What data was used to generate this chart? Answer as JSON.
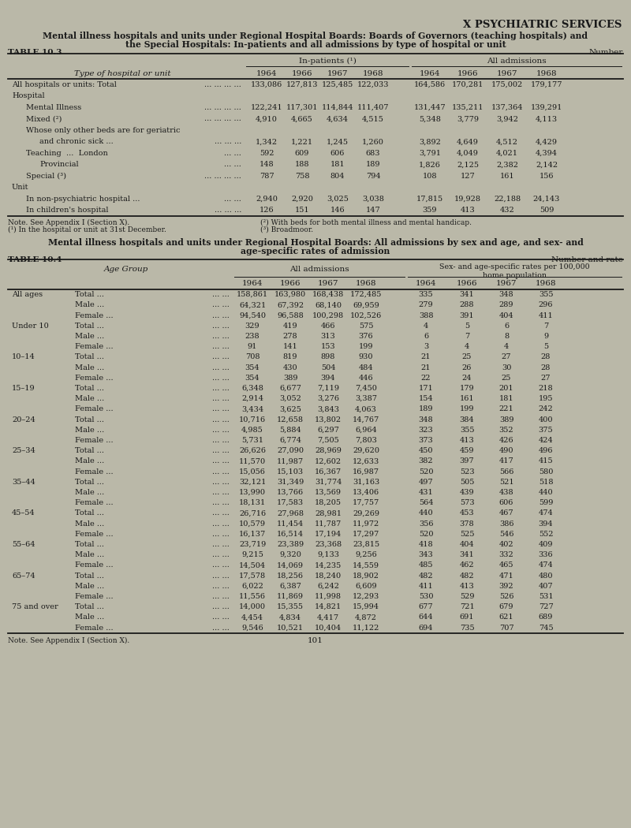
{
  "bg_color": "#bab8a8",
  "text_color": "#1a1a1a",
  "page_title": "X PSYCHIATRIC SERVICES",
  "table1_title1": "Mental illness hospitals and units under Regional Hospital Boards: Boards of Governors (teaching hospitals) and",
  "table1_title2": "the Special Hospitals: In-patients and all admissions by type of hospital or unit",
  "table1_label": "TABLE 10.3",
  "table1_number": "Number",
  "table1_rows": [
    {
      "label": "All hospitals or units: Total",
      "label2": "... ... ... ...",
      "indent": 0,
      "bold_label": false,
      "ip": [
        133086,
        127813,
        125485,
        122033
      ],
      "adm": [
        164586,
        170281,
        175002,
        179177
      ]
    },
    {
      "label": "Hospital",
      "label2": "",
      "indent": 0,
      "bold_label": false,
      "ip": null,
      "adm": null
    },
    {
      "label": "Mental Illness",
      "label2": "... ... ... ...",
      "indent": 1,
      "bold_label": false,
      "ip": [
        122241,
        117301,
        114844,
        111407
      ],
      "adm": [
        131447,
        135211,
        137364,
        139291
      ]
    },
    {
      "label": "Mixed (²)",
      "label2": "... ... ... ...",
      "indent": 1,
      "bold_label": false,
      "ip": [
        4910,
        4665,
        4634,
        4515
      ],
      "adm": [
        5348,
        3779,
        3942,
        4113
      ]
    },
    {
      "label": "Whose only other beds are for geriatric",
      "label2": "",
      "indent": 1,
      "bold_label": false,
      "ip": null,
      "adm": null
    },
    {
      "label": "and chronic sick ...",
      "label2": "... ... ...",
      "indent": 2,
      "bold_label": false,
      "ip": [
        1342,
        1221,
        1245,
        1260
      ],
      "adm": [
        3892,
        4649,
        4512,
        4429
      ]
    },
    {
      "label": "Teaching  ...  London",
      "label2": "... ...",
      "indent": 1,
      "bold_label": false,
      "ip": [
        592,
        609,
        606,
        683
      ],
      "adm": [
        3791,
        4049,
        4021,
        4394
      ]
    },
    {
      "label": "Provincial",
      "label2": "... ...",
      "indent": 2,
      "bold_label": false,
      "ip": [
        148,
        188,
        181,
        189
      ],
      "adm": [
        1826,
        2125,
        2382,
        2142
      ]
    },
    {
      "label": "Special (³)",
      "label2": "... ... ... ...",
      "indent": 1,
      "bold_label": false,
      "ip": [
        787,
        758,
        804,
        794
      ],
      "adm": [
        108,
        127,
        161,
        156
      ]
    },
    {
      "label": "Unit",
      "label2": "",
      "indent": 0,
      "bold_label": false,
      "ip": null,
      "adm": null
    },
    {
      "label": "In non-psychiatric hospital ...",
      "label2": "... ...",
      "indent": 1,
      "bold_label": false,
      "ip": [
        2940,
        2920,
        3025,
        3038
      ],
      "adm": [
        17815,
        19928,
        22188,
        24143
      ]
    },
    {
      "label": "In children's hospital",
      "label2": "... ... ...",
      "indent": 1,
      "bold_label": false,
      "ip": [
        126,
        151,
        146,
        147
      ],
      "adm": [
        359,
        413,
        432,
        509
      ]
    }
  ],
  "table1_notes_left": [
    "Note. See Appendix I (Section X).",
    "(¹) In the hospital or unit at 31st December."
  ],
  "table1_notes_right": [
    "(²) With beds for both mental illness and mental handicap.",
    "(³) Broadmoor."
  ],
  "table2_title1": "Mental illness hospitals and units under Regional Hospital Boards: All admissions by sex and age, and sex- and",
  "table2_title2": "age-specific rates of admission",
  "table2_label": "TABLE 10.4",
  "table2_number": "Number and rate",
  "table2_rows": [
    {
      "age": "All ages",
      "sub": "Total",
      "adm": [
        158861,
        163980,
        168438,
        172485
      ],
      "rates": [
        335,
        341,
        348,
        355
      ]
    },
    {
      "age": "",
      "sub": "Male",
      "adm": [
        64321,
        67392,
        68140,
        69959
      ],
      "rates": [
        279,
        288,
        289,
        296
      ]
    },
    {
      "age": "",
      "sub": "Female",
      "adm": [
        94540,
        96588,
        100298,
        102526
      ],
      "rates": [
        388,
        391,
        404,
        411
      ]
    },
    {
      "age": "Under 10",
      "sub": "Total",
      "adm": [
        329,
        419,
        466,
        575
      ],
      "rates": [
        4,
        5,
        6,
        7
      ]
    },
    {
      "age": "",
      "sub": "Male",
      "adm": [
        238,
        278,
        313,
        376
      ],
      "rates": [
        6,
        7,
        8,
        9
      ]
    },
    {
      "age": "",
      "sub": "Female",
      "adm": [
        91,
        141,
        153,
        199
      ],
      "rates": [
        3,
        4,
        4,
        5
      ]
    },
    {
      "age": "10–14",
      "sub": "Total",
      "adm": [
        708,
        819,
        898,
        930
      ],
      "rates": [
        21,
        25,
        27,
        28
      ]
    },
    {
      "age": "",
      "sub": "Male",
      "adm": [
        354,
        430,
        504,
        484
      ],
      "rates": [
        21,
        26,
        30,
        28
      ]
    },
    {
      "age": "",
      "sub": "Female",
      "adm": [
        354,
        389,
        394,
        446
      ],
      "rates": [
        22,
        24,
        25,
        27
      ]
    },
    {
      "age": "15–19",
      "sub": "Total",
      "adm": [
        6348,
        6677,
        7119,
        7450
      ],
      "rates": [
        171,
        179,
        201,
        218
      ]
    },
    {
      "age": "",
      "sub": "Male",
      "adm": [
        2914,
        3052,
        3276,
        3387
      ],
      "rates": [
        154,
        161,
        181,
        195
      ]
    },
    {
      "age": "",
      "sub": "Female",
      "adm": [
        3434,
        3625,
        3843,
        4063
      ],
      "rates": [
        189,
        199,
        221,
        242
      ]
    },
    {
      "age": "20–24",
      "sub": "Total",
      "adm": [
        10716,
        12658,
        13802,
        14767
      ],
      "rates": [
        348,
        384,
        389,
        400
      ]
    },
    {
      "age": "",
      "sub": "Male",
      "adm": [
        4985,
        5884,
        6297,
        6964
      ],
      "rates": [
        323,
        355,
        352,
        375
      ]
    },
    {
      "age": "",
      "sub": "Female",
      "adm": [
        5731,
        6774,
        7505,
        7803
      ],
      "rates": [
        373,
        413,
        426,
        424
      ]
    },
    {
      "age": "25–34",
      "sub": "Total",
      "adm": [
        26626,
        27090,
        28969,
        29620
      ],
      "rates": [
        450,
        459,
        490,
        496
      ]
    },
    {
      "age": "",
      "sub": "Male",
      "adm": [
        11570,
        11987,
        12602,
        12633
      ],
      "rates": [
        382,
        397,
        417,
        415
      ]
    },
    {
      "age": "",
      "sub": "Female",
      "adm": [
        15056,
        15103,
        16367,
        16987
      ],
      "rates": [
        520,
        523,
        566,
        580
      ]
    },
    {
      "age": "35–44",
      "sub": "Total",
      "adm": [
        32121,
        31349,
        31774,
        31163
      ],
      "rates": [
        497,
        505,
        521,
        518
      ]
    },
    {
      "age": "",
      "sub": "Male",
      "adm": [
        13990,
        13766,
        13569,
        13406
      ],
      "rates": [
        431,
        439,
        438,
        440
      ]
    },
    {
      "age": "",
      "sub": "Female",
      "adm": [
        18131,
        17583,
        18205,
        17757
      ],
      "rates": [
        564,
        573,
        606,
        599
      ]
    },
    {
      "age": "45–54",
      "sub": "Total",
      "adm": [
        26716,
        27968,
        28981,
        29269
      ],
      "rates": [
        440,
        453,
        467,
        474
      ]
    },
    {
      "age": "",
      "sub": "Male",
      "adm": [
        10579,
        11454,
        11787,
        11972
      ],
      "rates": [
        356,
        378,
        386,
        394
      ]
    },
    {
      "age": "",
      "sub": "Female",
      "adm": [
        16137,
        16514,
        17194,
        17297
      ],
      "rates": [
        520,
        525,
        546,
        552
      ]
    },
    {
      "age": "55–64",
      "sub": "Total",
      "adm": [
        23719,
        23389,
        23368,
        23815
      ],
      "rates": [
        418,
        404,
        402,
        409
      ]
    },
    {
      "age": "",
      "sub": "Male",
      "adm": [
        9215,
        9320,
        9133,
        9256
      ],
      "rates": [
        343,
        341,
        332,
        336
      ]
    },
    {
      "age": "",
      "sub": "Female",
      "adm": [
        14504,
        14069,
        14235,
        14559
      ],
      "rates": [
        485,
        462,
        465,
        474
      ]
    },
    {
      "age": "65–74",
      "sub": "Total",
      "adm": [
        17578,
        18256,
        18240,
        18902
      ],
      "rates": [
        482,
        482,
        471,
        480
      ]
    },
    {
      "age": "",
      "sub": "Male",
      "adm": [
        6022,
        6387,
        6242,
        6609
      ],
      "rates": [
        411,
        413,
        392,
        407
      ]
    },
    {
      "age": "",
      "sub": "Female",
      "adm": [
        11556,
        11869,
        11998,
        12293
      ],
      "rates": [
        530,
        529,
        526,
        531
      ]
    },
    {
      "age": "75 and over",
      "sub": "Total",
      "adm": [
        14000,
        15355,
        14821,
        15994
      ],
      "rates": [
        677,
        721,
        679,
        727
      ]
    },
    {
      "age": "",
      "sub": "Male",
      "adm": [
        4454,
        4834,
        4417,
        4872
      ],
      "rates": [
        644,
        691,
        621,
        689
      ]
    },
    {
      "age": "",
      "sub": "Female",
      "adm": [
        9546,
        10521,
        10404,
        11122
      ],
      "rates": [
        694,
        735,
        707,
        745
      ]
    }
  ],
  "table2_note": "Note. See Appendix I (Section X).",
  "table2_page": "101"
}
